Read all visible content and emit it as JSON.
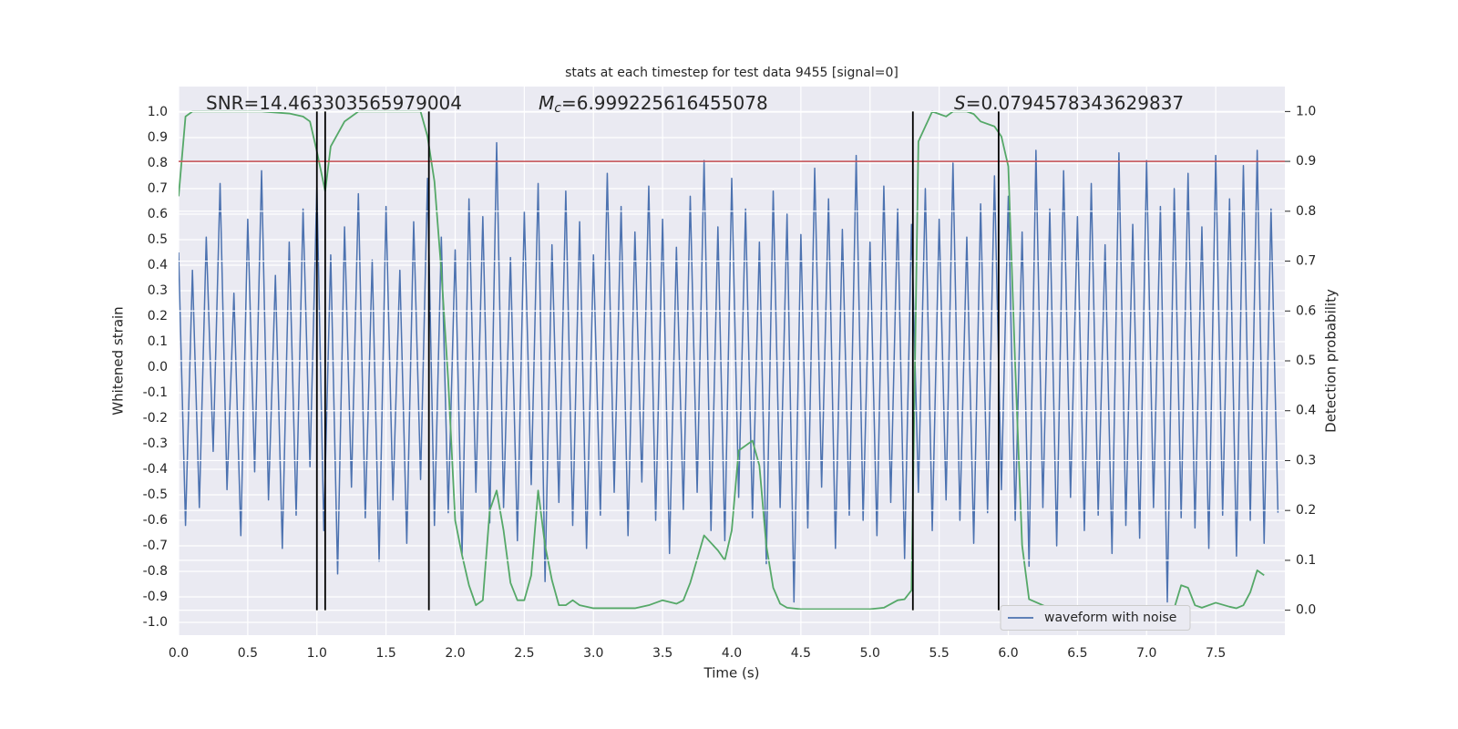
{
  "chart_data": {
    "type": "line",
    "title": "stats at each timestep for test data 9455 [signal=0]",
    "xlabel": "Time (s)",
    "ylabel": "Whitened strain",
    "y2label": "Detection probability",
    "xlim": [
      0,
      8
    ],
    "ylim": [
      -1.05,
      1.1
    ],
    "y2lim": [
      -0.05,
      1.05
    ],
    "xticks": [
      {
        "value": 0,
        "label": "0.0"
      },
      0.5,
      {
        "value": 1,
        "label": "1.0"
      },
      1.5,
      {
        "value": 2,
        "label": "2.0"
      },
      2.5,
      {
        "value": 3,
        "label": "3.0"
      },
      3.5,
      {
        "value": 4,
        "label": "4.0"
      },
      4.5,
      {
        "value": 5,
        "label": "5.0"
      },
      5.5,
      {
        "value": 6,
        "label": "6.0"
      },
      6.5,
      {
        "value": 7,
        "label": "7.0"
      },
      7.5
    ],
    "yticks": [
      {
        "value": -1,
        "label": "-1.0"
      },
      -0.9,
      -0.8,
      -0.7,
      -0.6,
      -0.5,
      -0.4,
      -0.3,
      -0.2,
      -0.1,
      {
        "value": 0,
        "label": "0.0"
      },
      0.1,
      0.2,
      0.3,
      0.4,
      0.5,
      0.6,
      0.7,
      0.8,
      0.9,
      {
        "value": 1,
        "label": "1.0"
      }
    ],
    "y2ticks": [
      {
        "value": 0,
        "label": "0.0"
      },
      0.1,
      0.2,
      0.3,
      0.4,
      0.5,
      0.6,
      0.7,
      0.8,
      0.9,
      {
        "value": 1,
        "label": "1.0"
      }
    ],
    "grid": true,
    "legend": "lower right",
    "annotations": [
      {
        "text": "SNR=14.463303565979004"
      },
      {
        "symbol": "M",
        "subscript": "c",
        "text": "=6.999225616455078"
      },
      {
        "symbol": "S",
        "text": "=0.0794578343629837"
      }
    ],
    "hlines": [
      {
        "value": 0.9,
        "axis": "y2",
        "color": "#c44e52"
      }
    ],
    "vlines": {
      "x": [
        1.0,
        1.06,
        1.81,
        5.31,
        5.93
      ],
      "ylim": [
        0,
        1
      ],
      "axis": "y2",
      "color": "#000000"
    },
    "series": [
      {
        "name": "waveform with noise",
        "color": "#4c72b0",
        "axis": "y",
        "x": [
          0,
          0.05,
          0.1,
          0.15,
          0.2,
          0.25,
          0.3,
          0.35,
          0.4,
          0.45,
          0.5,
          0.55,
          0.6,
          0.65,
          0.7,
          0.75,
          0.8,
          0.85,
          0.9,
          0.95,
          1,
          1.05,
          1.1,
          1.15,
          1.2,
          1.25,
          1.3,
          1.35,
          1.4,
          1.45,
          1.5,
          1.55,
          1.6,
          1.65,
          1.7,
          1.75,
          1.8,
          1.85,
          1.9,
          1.95,
          2,
          2.05,
          2.1,
          2.15,
          2.2,
          2.25,
          2.3,
          2.35,
          2.4,
          2.45,
          2.5,
          2.55,
          2.6,
          2.65,
          2.7,
          2.75,
          2.8,
          2.85,
          2.9,
          2.95,
          3,
          3.05,
          3.1,
          3.15,
          3.2,
          3.25,
          3.3,
          3.35,
          3.4,
          3.45,
          3.5,
          3.55,
          3.6,
          3.65,
          3.7,
          3.75,
          3.8,
          3.85,
          3.9,
          3.95,
          4,
          4.05,
          4.1,
          4.15,
          4.2,
          4.25,
          4.3,
          4.35,
          4.4,
          4.45,
          4.5,
          4.55,
          4.6,
          4.65,
          4.7,
          4.75,
          4.8,
          4.85,
          4.9,
          4.95,
          5,
          5.05,
          5.1,
          5.15,
          5.2,
          5.25,
          5.3,
          5.35,
          5.4,
          5.45,
          5.5,
          5.55,
          5.6,
          5.65,
          5.7,
          5.75,
          5.8,
          5.85,
          5.9,
          5.95,
          6,
          6.05,
          6.1,
          6.15,
          6.2,
          6.25,
          6.3,
          6.35,
          6.4,
          6.45,
          6.5,
          6.55,
          6.6,
          6.65,
          6.7,
          6.75,
          6.8,
          6.85,
          6.9,
          6.95,
          7,
          7.05,
          7.1,
          7.15,
          7.2,
          7.25,
          7.3,
          7.35,
          7.4,
          7.45,
          7.5,
          7.55,
          7.6,
          7.65,
          7.7,
          7.75,
          7.8,
          7.85,
          7.9,
          7.95
        ],
        "values": [
          0.45,
          -0.62,
          0.38,
          -0.55,
          0.51,
          -0.33,
          0.72,
          -0.48,
          0.29,
          -0.66,
          0.58,
          -0.41,
          0.77,
          -0.52,
          0.36,
          -0.71,
          0.49,
          -0.58,
          0.62,
          -0.39,
          0.71,
          -0.64,
          0.44,
          -0.81,
          0.55,
          -0.47,
          0.68,
          -0.59,
          0.42,
          -0.76,
          0.63,
          -0.52,
          0.38,
          -0.69,
          0.57,
          -0.44,
          0.74,
          -0.62,
          0.51,
          -0.57,
          0.46,
          -0.73,
          0.66,
          -0.49,
          0.59,
          -0.61,
          0.88,
          -0.55,
          0.43,
          -0.68,
          0.61,
          -0.46,
          0.72,
          -0.84,
          0.48,
          -0.53,
          0.69,
          -0.62,
          0.57,
          -0.71,
          0.44,
          -0.58,
          0.76,
          -0.49,
          0.63,
          -0.66,
          0.53,
          -0.45,
          0.71,
          -0.6,
          0.58,
          -0.73,
          0.47,
          -0.56,
          0.67,
          -0.49,
          0.81,
          -0.64,
          0.55,
          -0.68,
          0.74,
          -0.51,
          0.62,
          -0.59,
          0.49,
          -0.77,
          0.69,
          -0.55,
          0.6,
          -0.92,
          0.52,
          -0.63,
          0.78,
          -0.47,
          0.66,
          -0.71,
          0.54,
          -0.58,
          0.83,
          -0.6,
          0.49,
          -0.66,
          0.71,
          -0.53,
          0.62,
          -0.75,
          0.56,
          -0.49,
          0.7,
          -0.64,
          0.58,
          -0.52,
          0.8,
          -0.6,
          0.51,
          -0.69,
          0.64,
          -0.57,
          0.75,
          -0.48,
          0.67,
          -0.6,
          0.53,
          -0.78,
          0.85,
          -0.55,
          0.62,
          -0.7,
          0.77,
          -0.51,
          0.59,
          -0.64,
          0.72,
          -0.58,
          0.48,
          -0.73,
          0.84,
          -0.62,
          0.56,
          -0.67,
          0.81,
          -0.55,
          0.63,
          -0.92,
          0.7,
          -0.59,
          0.76,
          -0.63,
          0.55,
          -0.71,
          0.83,
          -0.58,
          0.66,
          -0.74,
          0.79,
          -0.6,
          0.85,
          -0.69,
          0.62,
          -0.57
        ]
      },
      {
        "color": "#55a868",
        "axis": "y2",
        "x": [
          0,
          0.05,
          0.1,
          0.3,
          0.6,
          0.8,
          0.9,
          0.95,
          1.0,
          1.06,
          1.1,
          1.2,
          1.3,
          1.5,
          1.75,
          1.8,
          1.85,
          1.9,
          1.95,
          2.0,
          2.05,
          2.1,
          2.15,
          2.2,
          2.25,
          2.3,
          2.35,
          2.4,
          2.45,
          2.5,
          2.55,
          2.6,
          2.65,
          2.7,
          2.75,
          2.8,
          2.85,
          2.9,
          3.0,
          3.3,
          3.4,
          3.5,
          3.6,
          3.65,
          3.7,
          3.8,
          3.9,
          3.95,
          4.0,
          4.05,
          4.15,
          4.2,
          4.25,
          4.3,
          4.35,
          4.4,
          4.5,
          5.0,
          5.1,
          5.2,
          5.25,
          5.3,
          5.35,
          5.4,
          5.45,
          5.55,
          5.6,
          5.7,
          5.75,
          5.8,
          5.9,
          5.95,
          6.0,
          6.05,
          6.1,
          6.15,
          6.3,
          6.5,
          6.6,
          7.0,
          7.2,
          7.25,
          7.3,
          7.35,
          7.4,
          7.5,
          7.6,
          7.65,
          7.7,
          7.75,
          7.8,
          7.85
        ],
        "values": [
          0.83,
          0.99,
          1.0,
          1.0,
          1.0,
          0.996,
          0.99,
          0.98,
          0.92,
          0.84,
          0.93,
          0.98,
          1.0,
          1.0,
          1.0,
          0.95,
          0.86,
          0.68,
          0.46,
          0.18,
          0.11,
          0.05,
          0.01,
          0.02,
          0.2,
          0.24,
          0.16,
          0.055,
          0.02,
          0.02,
          0.07,
          0.24,
          0.13,
          0.06,
          0.01,
          0.01,
          0.02,
          0.01,
          0.004,
          0.004,
          0.01,
          0.02,
          0.013,
          0.02,
          0.055,
          0.15,
          0.12,
          0.1,
          0.16,
          0.32,
          0.34,
          0.29,
          0.13,
          0.045,
          0.013,
          0.005,
          0.002,
          0.002,
          0.005,
          0.02,
          0.022,
          0.04,
          0.94,
          0.97,
          1.0,
          0.99,
          1.0,
          1.0,
          0.995,
          0.98,
          0.97,
          0.95,
          0.89,
          0.49,
          0.13,
          0.022,
          0.004,
          0.005,
          0.002,
          0.002,
          0.004,
          0.05,
          0.045,
          0.01,
          0.005,
          0.015,
          0.007,
          0.004,
          0.01,
          0.036,
          0.08,
          0.07
        ]
      }
    ]
  }
}
